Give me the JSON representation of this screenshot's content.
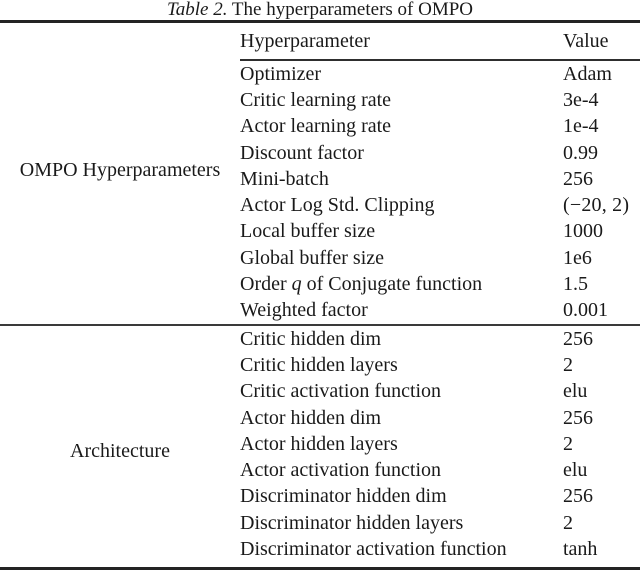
{
  "caption": {
    "prefix": "Table 2.",
    "text": " The hyperparameters of OMPO"
  },
  "table": {
    "header": {
      "group": "",
      "hyperparameter": "Hyperparameter",
      "value": "Value"
    },
    "groups": [
      {
        "label": "OMPO Hyperparameters",
        "rows": [
          {
            "param": "Optimizer",
            "value": "Adam"
          },
          {
            "param": "Critic learning rate",
            "value": "3e-4"
          },
          {
            "param": "Actor learning rate",
            "value": "1e-4"
          },
          {
            "param": "Discount factor",
            "value": "0.99"
          },
          {
            "param": "Mini-batch",
            "value": "256"
          },
          {
            "param": "Actor Log Std. Clipping",
            "value": "(−20, 2)"
          },
          {
            "param": "Local buffer size",
            "value": "1000"
          },
          {
            "param": "Global buffer size",
            "value": "1e6"
          },
          {
            "param": "Order *q* of Conjugate function",
            "value": "1.5"
          },
          {
            "param": "Weighted factor",
            "value": "0.001"
          }
        ]
      },
      {
        "label": "Architecture",
        "rows": [
          {
            "param": "Critic hidden dim",
            "value": "256"
          },
          {
            "param": "Critic hidden layers",
            "value": "2"
          },
          {
            "param": "Critic activation function",
            "value": "elu"
          },
          {
            "param": "Actor hidden dim",
            "value": "256"
          },
          {
            "param": "Actor hidden layers",
            "value": "2"
          },
          {
            "param": "Actor activation function",
            "value": "elu"
          },
          {
            "param": "Discriminator hidden dim",
            "value": "256"
          },
          {
            "param": "Discriminator hidden layers",
            "value": "2"
          },
          {
            "param": "Discriminator activation function",
            "value": "tanh"
          }
        ]
      }
    ]
  },
  "colors": {
    "text": "#1a1a1a",
    "rule_heavy": "#232323",
    "rule_light": "#3a3a3a",
    "background": "#ffffff"
  }
}
